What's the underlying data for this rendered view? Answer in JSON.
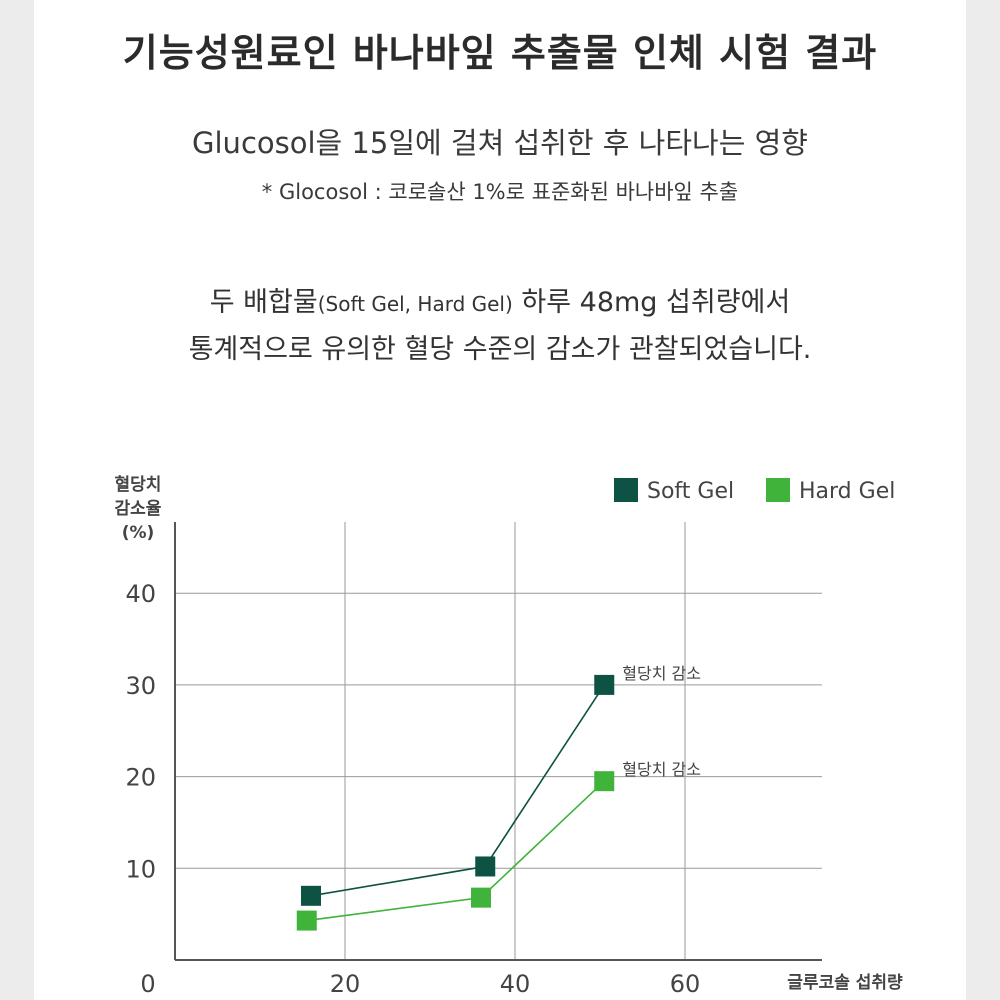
{
  "header": {
    "title": "기능성원료인 바나바잎 추출물 인체 시험 결과",
    "subtitle": "Glucosol을 15일에 걸쳐 섭취한 후 나타나는 영향",
    "note": "* Glocosol : 코로솔산 1%로 표준화된 바나바잎 추출"
  },
  "description": {
    "line1_a": "두 배합물",
    "line1_paren": "(Soft Gel, Hard Gel)",
    "line1_b": " 하루 ",
    "line1_mg": "48mg",
    "line1_c": " 섭취량에서",
    "line2": "통계적으로 유의한 혈당 수준의 감소가 관찰되었습니다."
  },
  "colors": {
    "soft_gel": "#0d5242",
    "hard_gel": "#3fb33a",
    "grid": "#9a9a9a",
    "axis": "#555555"
  },
  "chart_data": {
    "type": "line",
    "ylabel": [
      "혈당치",
      "감소율",
      "(%)"
    ],
    "xlabel": "글루코솔 섭취량",
    "xlim": [
      0,
      70
    ],
    "ylim": [
      0,
      45
    ],
    "xticks": [
      0,
      20,
      40,
      60
    ],
    "yticks": [
      10,
      20,
      30,
      40
    ],
    "grid": true,
    "legend_position": "top-right",
    "series": [
      {
        "name": "Soft Gel",
        "color_key": "soft_gel",
        "x": [
          16,
          36.5,
          50.5
        ],
        "y": [
          7,
          10.2,
          30
        ],
        "annotation": "혈당치 감소"
      },
      {
        "name": "Hard Gel",
        "color_key": "hard_gel",
        "x": [
          15.5,
          36,
          50.5
        ],
        "y": [
          4.3,
          6.8,
          19.5
        ],
        "annotation": "혈당치 감소"
      }
    ]
  }
}
